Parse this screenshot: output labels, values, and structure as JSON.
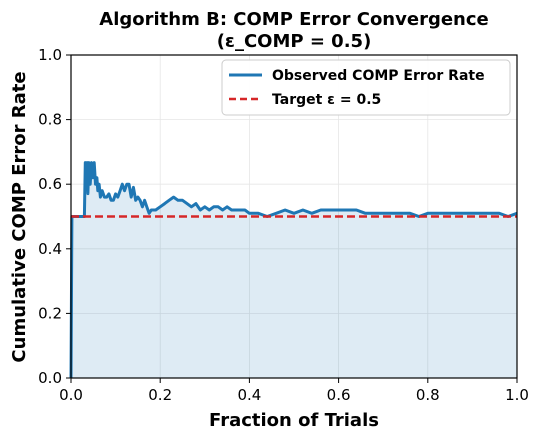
{
  "chart_data": {
    "type": "line",
    "title": "Algorithm B: COMP Error Convergence",
    "subtitle": "(ε_COMP = 0.5)",
    "xlabel": "Fraction of Trials",
    "ylabel": "Cumulative COMP Error Rate",
    "xlim": [
      0.0,
      1.0
    ],
    "ylim": [
      0.0,
      1.0
    ],
    "xticks": [
      "0.0",
      "0.2",
      "0.4",
      "0.6",
      "0.8",
      "1.0"
    ],
    "yticks": [
      "0.0",
      "0.2",
      "0.4",
      "0.6",
      "0.8",
      "1.0"
    ],
    "grid": true,
    "legend_position": "top-right",
    "series": [
      {
        "name": "Observed COMP Error Rate",
        "color": "#1f77b4",
        "style": "solid",
        "fill_under": true,
        "x": [
          0.0,
          0.002,
          0.004,
          0.006,
          0.01,
          0.015,
          0.02,
          0.025,
          0.028,
          0.03,
          0.032,
          0.034,
          0.036,
          0.038,
          0.04,
          0.043,
          0.046,
          0.049,
          0.052,
          0.055,
          0.058,
          0.06,
          0.063,
          0.066,
          0.07,
          0.075,
          0.08,
          0.085,
          0.09,
          0.095,
          0.1,
          0.105,
          0.11,
          0.115,
          0.12,
          0.125,
          0.13,
          0.135,
          0.14,
          0.145,
          0.15,
          0.155,
          0.16,
          0.165,
          0.17,
          0.175,
          0.18,
          0.19,
          0.2,
          0.21,
          0.22,
          0.23,
          0.24,
          0.25,
          0.26,
          0.27,
          0.28,
          0.29,
          0.3,
          0.31,
          0.32,
          0.33,
          0.34,
          0.35,
          0.36,
          0.37,
          0.38,
          0.39,
          0.4,
          0.42,
          0.44,
          0.46,
          0.48,
          0.5,
          0.52,
          0.54,
          0.56,
          0.58,
          0.6,
          0.62,
          0.64,
          0.66,
          0.68,
          0.7,
          0.72,
          0.74,
          0.76,
          0.78,
          0.8,
          0.82,
          0.84,
          0.86,
          0.88,
          0.9,
          0.92,
          0.94,
          0.96,
          0.98,
          1.0
        ],
        "y": [
          0.0,
          0.5,
          0.5,
          0.5,
          0.5,
          0.5,
          0.5,
          0.5,
          0.5,
          0.5,
          0.667,
          0.6,
          0.667,
          0.571,
          0.667,
          0.6,
          0.667,
          0.62,
          0.667,
          0.6,
          0.62,
          0.58,
          0.6,
          0.56,
          0.58,
          0.56,
          0.56,
          0.57,
          0.55,
          0.55,
          0.57,
          0.56,
          0.58,
          0.6,
          0.58,
          0.6,
          0.6,
          0.56,
          0.59,
          0.55,
          0.56,
          0.55,
          0.53,
          0.55,
          0.53,
          0.51,
          0.52,
          0.52,
          0.53,
          0.54,
          0.55,
          0.56,
          0.55,
          0.55,
          0.54,
          0.53,
          0.54,
          0.52,
          0.53,
          0.52,
          0.53,
          0.53,
          0.52,
          0.53,
          0.52,
          0.52,
          0.52,
          0.52,
          0.51,
          0.51,
          0.5,
          0.51,
          0.52,
          0.51,
          0.52,
          0.51,
          0.52,
          0.52,
          0.52,
          0.52,
          0.52,
          0.51,
          0.51,
          0.51,
          0.51,
          0.51,
          0.51,
          0.5,
          0.51,
          0.51,
          0.51,
          0.51,
          0.51,
          0.51,
          0.51,
          0.51,
          0.51,
          0.5,
          0.51
        ]
      },
      {
        "name": "Target ε = 0.5",
        "color": "#d62728",
        "style": "dashed",
        "x": [
          0.0,
          1.0
        ],
        "y": [
          0.5,
          0.5
        ]
      }
    ]
  }
}
